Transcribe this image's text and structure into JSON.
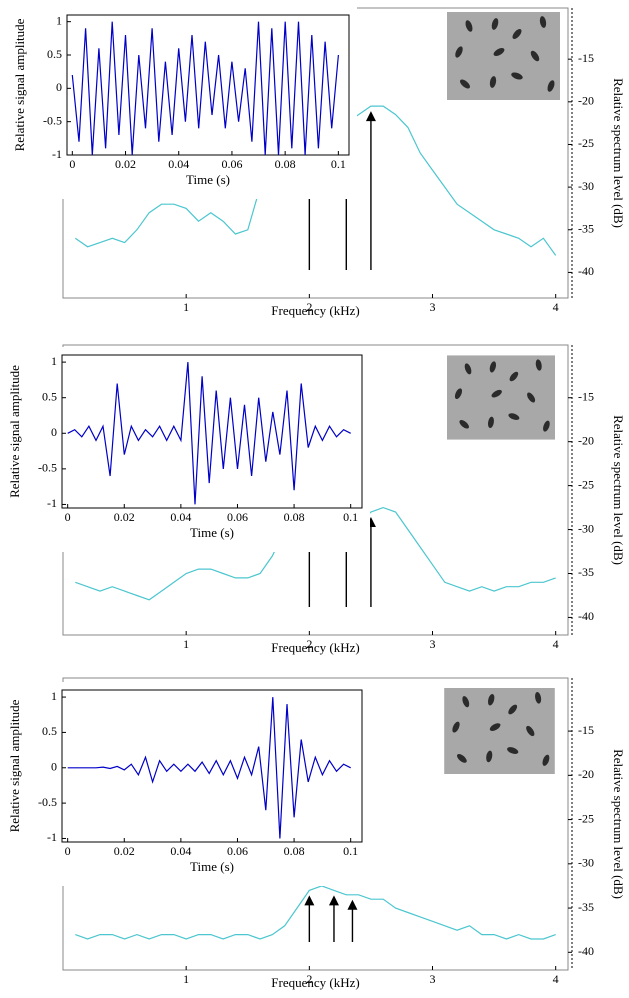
{
  "chart_data": [
    {
      "type": "line",
      "x_label": "Frequency (kHz)",
      "y_label": "Relative spectrum level (dB)",
      "y_axis_side": "right",
      "x": [
        0.1,
        0.2,
        0.3,
        0.4,
        0.5,
        0.6,
        0.7,
        0.8,
        0.9,
        1.0,
        1.1,
        1.2,
        1.3,
        1.4,
        1.5,
        1.6,
        1.7,
        1.8,
        1.9,
        2.0,
        2.1,
        2.2,
        2.3,
        2.4,
        2.5,
        2.6,
        2.7,
        2.8,
        2.9,
        3.0,
        3.1,
        3.2,
        3.3,
        3.4,
        3.5,
        3.6,
        3.7,
        3.8,
        3.9,
        4.0
      ],
      "series": [
        {
          "color": "#4cc6cf",
          "values": [
            -36,
            -37,
            -36.5,
            -36,
            -36.5,
            -35,
            -33,
            -32,
            -32,
            -32.5,
            -34,
            -33,
            -34,
            -35.5,
            -35,
            -30,
            -26,
            -22,
            -19.5,
            -19,
            -20,
            -22,
            -22.5,
            -21.5,
            -20.5,
            -20.5,
            -21.5,
            -23,
            -26,
            -28,
            -30,
            -32,
            -33,
            -34,
            -35,
            -35.5,
            -36,
            -37,
            -36,
            -38
          ]
        }
      ],
      "xlim": [
        0,
        4.1
      ],
      "xticks": [
        1,
        2,
        3,
        4
      ],
      "ylim": [
        -43,
        -9
      ],
      "yticks": [
        -15,
        -20,
        -25,
        -30,
        -35,
        -40
      ],
      "arrow_x": [
        2.0,
        2.3,
        2.5
      ]
    },
    {
      "type": "line",
      "x_label": "Time (s)",
      "y_label": "Relative signal amplitude",
      "y_axis_side": "left",
      "x": [
        0,
        0.0025,
        0.005,
        0.0075,
        0.01,
        0.0125,
        0.015,
        0.0175,
        0.02,
        0.0225,
        0.025,
        0.0275,
        0.03,
        0.0325,
        0.035,
        0.0375,
        0.04,
        0.0425,
        0.045,
        0.0475,
        0.05,
        0.0525,
        0.055,
        0.0575,
        0.06,
        0.0625,
        0.065,
        0.0675,
        0.07,
        0.0725,
        0.075,
        0.0775,
        0.08,
        0.0825,
        0.085,
        0.0875,
        0.09,
        0.0925,
        0.095,
        0.0975,
        0.1
      ],
      "series": [
        {
          "color": "#0000c8",
          "values": [
            0.2,
            -0.8,
            0.9,
            -1,
            0.6,
            -0.9,
            1,
            -0.7,
            0.8,
            -1,
            0.5,
            -0.6,
            0.9,
            -0.8,
            0.4,
            -0.7,
            0.6,
            -0.5,
            0.8,
            -0.6,
            0.7,
            -0.4,
            0.5,
            -0.6,
            0.4,
            -0.5,
            0.3,
            -0.8,
            1,
            -1,
            0.9,
            -1,
            1,
            -0.9,
            1,
            -1,
            0.8,
            -0.9,
            0.7,
            -0.6,
            0.5
          ]
        }
      ],
      "xlim": [
        -0.002,
        0.104
      ],
      "xticks": [
        0,
        0.02,
        0.04,
        0.06,
        0.08,
        0.1
      ],
      "ylim": [
        -1,
        1.1
      ],
      "yticks": [
        -1,
        -0.5,
        0,
        0.5,
        1
      ]
    },
    {
      "type": "line",
      "x_label": "Frequency (kHz)",
      "y_label": "Relative spectrum level (dB)",
      "y_axis_side": "right",
      "x": [
        0.1,
        0.2,
        0.3,
        0.4,
        0.5,
        0.6,
        0.7,
        0.8,
        0.9,
        1.0,
        1.1,
        1.2,
        1.3,
        1.4,
        1.5,
        1.6,
        1.7,
        1.8,
        1.9,
        2.0,
        2.1,
        2.2,
        2.3,
        2.4,
        2.5,
        2.6,
        2.7,
        2.8,
        2.9,
        3.0,
        3.1,
        3.2,
        3.3,
        3.4,
        3.5,
        3.6,
        3.7,
        3.8,
        3.9,
        4.0
      ],
      "series": [
        {
          "color": "#4cc6cf",
          "values": [
            -36,
            -36.5,
            -37,
            -36.5,
            -37,
            -37.5,
            -38,
            -37,
            -36,
            -35,
            -34.5,
            -34.5,
            -35,
            -35.5,
            -35.5,
            -35,
            -33,
            -30,
            -27,
            -25,
            -25.5,
            -28,
            -30,
            -29.5,
            -28,
            -27.5,
            -28,
            -30,
            -32,
            -34,
            -36,
            -36.5,
            -37,
            -36.5,
            -37,
            -36.5,
            -36.5,
            -36,
            -36,
            -35.5
          ]
        }
      ],
      "xlim": [
        0,
        4.1
      ],
      "xticks": [
        1,
        2,
        3,
        4
      ],
      "ylim": [
        -42,
        -9
      ],
      "yticks": [
        -15,
        -20,
        -25,
        -30,
        -35,
        -40
      ],
      "arrow_x": [
        2.0,
        2.3,
        2.5
      ]
    },
    {
      "type": "line",
      "x_label": "Time (s)",
      "y_label": "Relative signal amplitude",
      "y_axis_side": "left",
      "x": [
        0,
        0.0025,
        0.005,
        0.0075,
        0.01,
        0.0125,
        0.015,
        0.0175,
        0.02,
        0.0225,
        0.025,
        0.0275,
        0.03,
        0.0325,
        0.035,
        0.0375,
        0.04,
        0.0425,
        0.045,
        0.0475,
        0.05,
        0.0525,
        0.055,
        0.0575,
        0.06,
        0.0625,
        0.065,
        0.0675,
        0.07,
        0.0725,
        0.075,
        0.0775,
        0.08,
        0.0825,
        0.085,
        0.0875,
        0.09,
        0.0925,
        0.095,
        0.0975,
        0.1
      ],
      "series": [
        {
          "color": "#0000c8",
          "values": [
            0,
            0.05,
            -0.05,
            0.1,
            -0.1,
            0.1,
            -0.6,
            0.7,
            -0.3,
            0.1,
            -0.1,
            0.05,
            -0.05,
            0.1,
            -0.1,
            0.1,
            -0.1,
            1,
            -1,
            0.8,
            -0.7,
            0.6,
            -0.5,
            0.5,
            -0.5,
            0.4,
            -0.6,
            0.5,
            -0.4,
            0.3,
            -0.3,
            0.6,
            -0.8,
            0.7,
            -0.2,
            0.1,
            -0.1,
            0.1,
            -0.05,
            0.05,
            0
          ]
        }
      ],
      "xlim": [
        -0.002,
        0.104
      ],
      "xticks": [
        0,
        0.02,
        0.04,
        0.06,
        0.08,
        0.1
      ],
      "ylim": [
        -1.05,
        1.1
      ],
      "yticks": [
        -1,
        -0.5,
        0,
        0.5,
        1
      ]
    },
    {
      "type": "line",
      "x_label": "Frequency (kHz)",
      "y_label": "Relative spectrum level (dB)",
      "y_axis_side": "right",
      "x": [
        0.1,
        0.2,
        0.3,
        0.4,
        0.5,
        0.6,
        0.7,
        0.8,
        0.9,
        1.0,
        1.1,
        1.2,
        1.3,
        1.4,
        1.5,
        1.6,
        1.7,
        1.8,
        1.9,
        2.0,
        2.1,
        2.2,
        2.3,
        2.4,
        2.5,
        2.6,
        2.7,
        2.8,
        2.9,
        3.0,
        3.1,
        3.2,
        3.3,
        3.4,
        3.5,
        3.6,
        3.7,
        3.8,
        3.9,
        4.0
      ],
      "series": [
        {
          "color": "#4cc6cf",
          "values": [
            -38,
            -38.5,
            -38,
            -38,
            -38.5,
            -38,
            -38.5,
            -38,
            -38,
            -38.5,
            -38,
            -38,
            -38.5,
            -38,
            -38,
            -38.5,
            -38,
            -37,
            -35,
            -33,
            -32.5,
            -33,
            -33.5,
            -33.5,
            -34,
            -34,
            -35,
            -35.5,
            -36,
            -36.5,
            -37,
            -37.5,
            -37,
            -38,
            -38,
            -38.5,
            -38,
            -38.5,
            -38.5,
            -38
          ]
        }
      ],
      "xlim": [
        0,
        4.1
      ],
      "xticks": [
        1,
        2,
        3,
        4
      ],
      "ylim": [
        -42,
        -9
      ],
      "yticks": [
        -15,
        -20,
        -25,
        -30,
        -35,
        -40
      ],
      "arrow_x": [
        2.0,
        2.2,
        2.35
      ]
    },
    {
      "type": "line",
      "x_label": "Time (s)",
      "y_label": "Relative signal amplitude",
      "y_axis_side": "left",
      "x": [
        0,
        0.0025,
        0.005,
        0.0075,
        0.01,
        0.0125,
        0.015,
        0.0175,
        0.02,
        0.0225,
        0.025,
        0.0275,
        0.03,
        0.0325,
        0.035,
        0.0375,
        0.04,
        0.0425,
        0.045,
        0.0475,
        0.05,
        0.0525,
        0.055,
        0.0575,
        0.06,
        0.0625,
        0.065,
        0.0675,
        0.07,
        0.0725,
        0.075,
        0.0775,
        0.08,
        0.0825,
        0.085,
        0.0875,
        0.09,
        0.0925,
        0.095,
        0.0975,
        0.1
      ],
      "series": [
        {
          "color": "#0000c8",
          "values": [
            0,
            0,
            0,
            0,
            0,
            0.01,
            -0.01,
            0.02,
            -0.03,
            0.05,
            -0.1,
            0.15,
            -0.2,
            0.1,
            -0.05,
            0.05,
            -0.05,
            0.05,
            -0.05,
            0.08,
            -0.08,
            0.1,
            -0.1,
            0.1,
            -0.15,
            0.15,
            -0.1,
            0.3,
            -0.6,
            1,
            -1,
            0.9,
            -0.7,
            0.4,
            -0.2,
            0.15,
            -0.1,
            0.1,
            -0.05,
            0.05,
            0
          ]
        }
      ],
      "xlim": [
        -0.002,
        0.104
      ],
      "xticks": [
        0,
        0.02,
        0.04,
        0.06,
        0.08,
        0.1
      ],
      "ylim": [
        -1.05,
        1.1
      ],
      "yticks": [
        -1,
        -0.5,
        0,
        0.5,
        1
      ]
    }
  ]
}
